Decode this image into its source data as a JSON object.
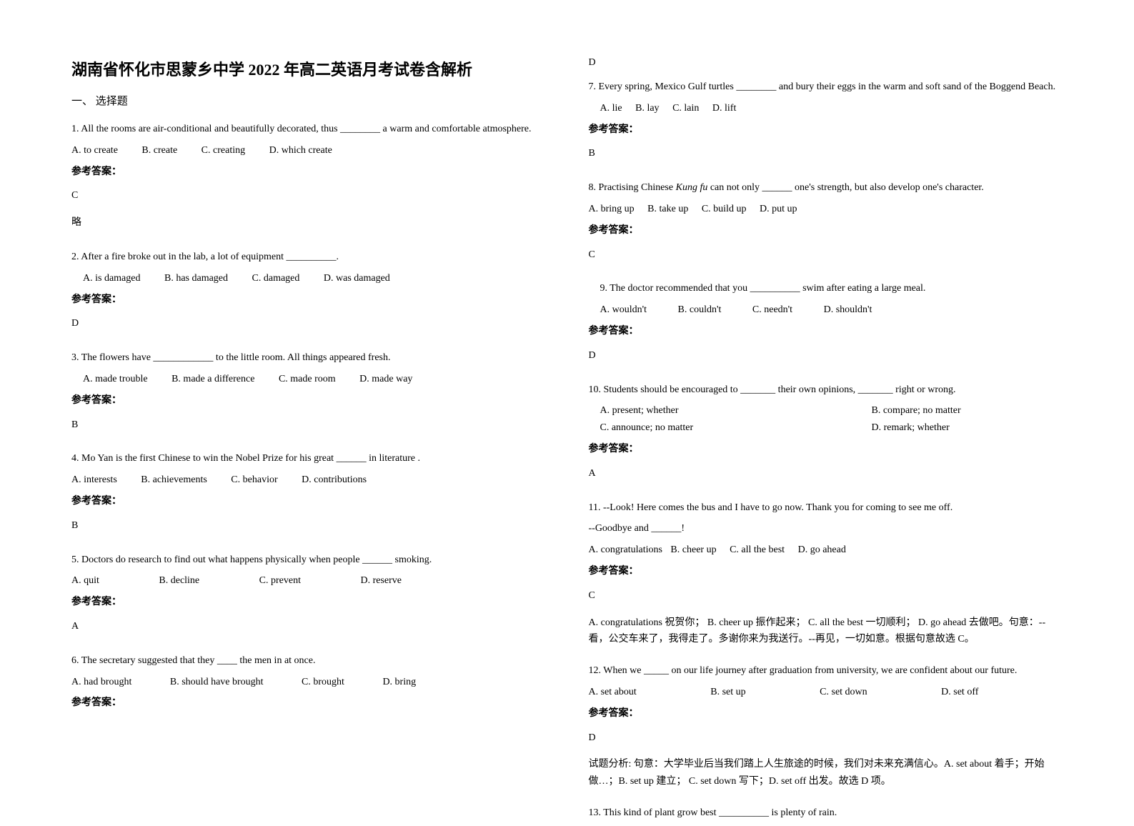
{
  "title": "湖南省怀化市思蒙乡中学 2022 年高二英语月考试卷含解析",
  "section_header": "一、 选择题",
  "answer_label": "参考答案：",
  "q1": {
    "text": "1. All the rooms are air-conditional and beautifully decorated, thus ________  a warm and comfortable atmosphere.",
    "optA": "A.  to create",
    "optB": "B.  create",
    "optC": "C.  creating",
    "optD": "D.  which create",
    "answer": "C",
    "note": "略"
  },
  "q2": {
    "text": "2. After a fire broke out in the lab, a lot of equipment __________.",
    "optA": "A. is damaged",
    "optB": "B. has damaged",
    "optC": "C. damaged",
    "optD": "D. was damaged",
    "answer": "D"
  },
  "q3": {
    "text": "3. The flowers have ____________ to the little room. All things appeared fresh.",
    "optA": "A. made trouble",
    "optB": "B. made a difference",
    "optC": "C. made room",
    "optD": "D. made way",
    "answer": "B"
  },
  "q4": {
    "text": "4. Mo Yan is the first Chinese to win the Nobel Prize for his great ______ in literature .",
    "optA": "A. interests",
    "optB": "B. achievements",
    "optC": "C. behavior",
    "optD": "D. contributions",
    "answer": "B"
  },
  "q5": {
    "text": "5. Doctors do research to find out what happens physically when people ______  smoking.",
    "optA": "A. quit",
    "optB": "B. decline",
    "optC": "C. prevent",
    "optD": "D. reserve",
    "answer": "A"
  },
  "q6": {
    "text": "6. The secretary suggested that they ____ the men in at once.",
    "optA": "A. had brought",
    "optB": "B. should have brought",
    "optC": "C. brought",
    "optD": "D. bring",
    "answer": "D"
  },
  "q7": {
    "text": "7. Every spring, Mexico Gulf turtles ________  and bury their eggs in the warm and soft sand of the Boggend Beach.",
    "optA": "A. lie",
    "optB": "B. lay",
    "optC": "C. lain",
    "optD": "D. lift",
    "answer": "B"
  },
  "q8": {
    "text_pre": "8. Practising Chinese ",
    "text_italic": "Kung fu",
    "text_post": " can not only ______ one's strength, but also develop one's character.",
    "optA": "A. bring up",
    "optB": "B. take up",
    "optC": "C. build up",
    "optD": "D. put up",
    "answer": "C"
  },
  "q9": {
    "text": "9. The doctor recommended that you __________ swim after eating a large meal.",
    "optA": "A. wouldn't",
    "optB": "B. couldn't",
    "optC": "C. needn't",
    "optD": "D. shouldn't",
    "answer": "D"
  },
  "q10": {
    "text": "10. Students should be encouraged to _______ their own opinions, _______ right or wrong.",
    "optA": "A. present; whether",
    "optB": "B. compare; no matter",
    "optC": "C. announce; no matter",
    "optD": "D. remark; whether",
    "answer": "A"
  },
  "q11": {
    "text1": "11. --Look! Here comes the bus and I have to go now. Thank you for coming to see me off.",
    "text2": "--Goodbye and ______!",
    "optA": "A. congratulations",
    "optB": "B. cheer up",
    "optC": "C. all the best",
    "optD": "D. go ahead",
    "answer": "C",
    "explanation": "A. congratulations 祝贺你；  B. cheer up 振作起来；  C. all the best 一切顺利；  D. go ahead 去做吧。句意：--看，公交车来了，我得走了。多谢你来为我送行。--再见，一切如意。根据句意故选 C。"
  },
  "q12": {
    "text": "12. When we _____ on our life journey after graduation from university, we are confident about our future.",
    "optA": "A. set about",
    "optB": "B. set up",
    "optC": "C. set down",
    "optD": "D. set off",
    "answer": "D",
    "explanation": "试题分析: 句意：大学毕业后当我们踏上人生旅途的时候，我们对未来充满信心。A. set about 着手；开始做…；B. set up 建立；      C. set down 写下；D. set off 出发。故选 D 项。"
  },
  "q13": {
    "text": "13. This kind of plant grow best __________ is plenty of rain."
  }
}
